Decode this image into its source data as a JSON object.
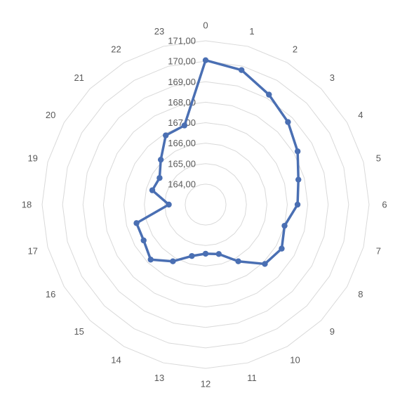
{
  "chart_data": {
    "type": "radar",
    "title": "",
    "categories": [
      "0",
      "1",
      "2",
      "3",
      "4",
      "5",
      "6",
      "7",
      "8",
      "9",
      "10",
      "11",
      "12",
      "13",
      "14",
      "15",
      "16",
      "17",
      "18",
      "19",
      "20",
      "21",
      "22",
      "23"
    ],
    "series": [
      {
        "values": [
          170.05,
          169.8,
          169.2,
          168.7,
          168.2,
          167.7,
          167.5,
          167.0,
          167.3,
          167.1,
          166.2,
          165.5,
          165.4,
          165.6,
          166.2,
          166.8,
          166.5,
          166.5,
          164.8,
          165.7,
          165.6,
          166.1,
          166.9,
          167.0
        ],
        "color": "#4a6fb3"
      }
    ],
    "tick_labels": [
      "164,00",
      "165,00",
      "166,00",
      "167,00",
      "168,00",
      "169,00",
      "170,00",
      "171,00"
    ],
    "rmin": 163,
    "rmax": 171,
    "ticks": [
      164,
      165,
      166,
      167,
      168,
      169,
      170,
      171
    ],
    "grid": true,
    "legend": "none"
  }
}
